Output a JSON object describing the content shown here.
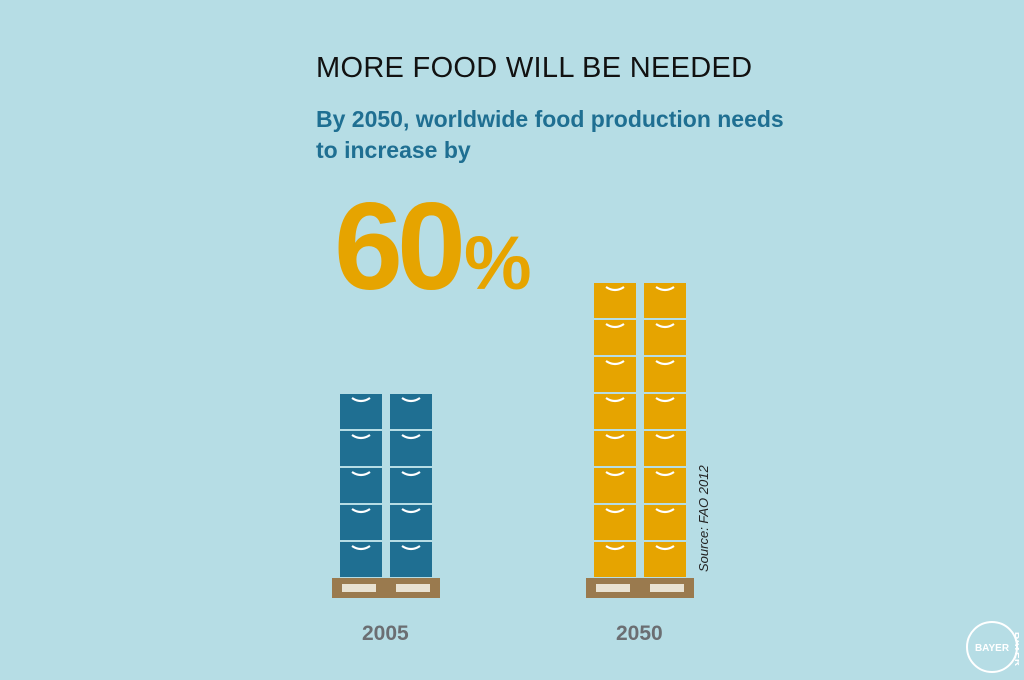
{
  "header": {
    "title": "MORE FOOD WILL BE NEEDED",
    "subtitle": "By 2050, worldwide food production needs to increase by",
    "highlight_number": "60",
    "highlight_unit": "%"
  },
  "source": "Source: FAO 2012",
  "logo": {
    "text": "BAYER",
    "icon": "bayer-cross-logo-icon"
  },
  "colors": {
    "background": "#b6dde5",
    "crate_2005": "#1f6f92",
    "crate_2050": "#e6a400",
    "pallet": "#9a7a4e",
    "label": "#6b6e72",
    "accent": "#e6a400"
  },
  "chart_data": {
    "type": "bar",
    "categories": [
      "2005",
      "2050"
    ],
    "values": [
      100,
      160
    ],
    "unit": "relative food production (crate stacks)",
    "crates_per_column": [
      5,
      8
    ],
    "columns_per_stack": 2,
    "annotation": "60%"
  }
}
